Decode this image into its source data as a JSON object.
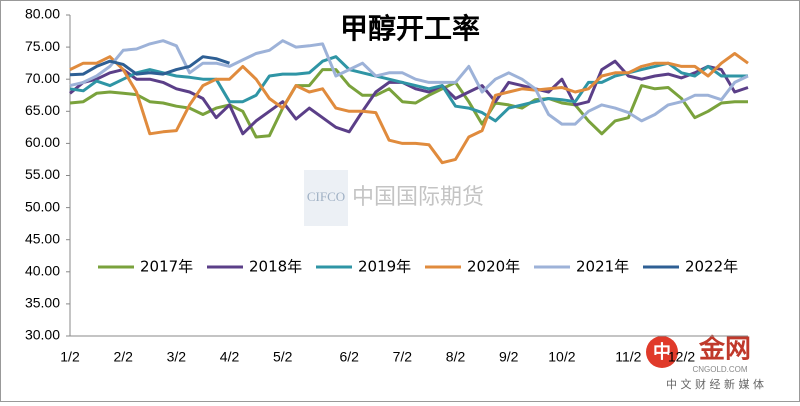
{
  "chart_data": {
    "type": "line",
    "title": "甲醇开工率",
    "categories": [
      "1/2",
      null,
      null,
      null,
      "2/2",
      null,
      null,
      null,
      "3/2",
      null,
      null,
      null,
      "4/2",
      null,
      null,
      null,
      "5/2",
      null,
      null,
      null,
      null,
      "6/2",
      null,
      null,
      null,
      "7/2",
      null,
      null,
      null,
      "8/2",
      null,
      null,
      null,
      "9/2",
      null,
      null,
      null,
      "10/2",
      null,
      null,
      null,
      null,
      "11/2",
      null,
      null,
      null,
      "12/2",
      null,
      null,
      null,
      null,
      null
    ],
    "series": [
      {
        "name": "2017年",
        "color": "#7aa23c",
        "values": [
          66.3,
          66.5,
          67.8,
          68,
          67.8,
          67.6,
          66.5,
          66.3,
          65.8,
          65.5,
          64.5,
          65.5,
          66,
          65,
          61,
          61.2,
          65.5,
          69,
          69,
          71.5,
          71.5,
          69,
          67.5,
          67.5,
          68.5,
          66.5,
          66.3,
          67.5,
          68.5,
          69.5,
          66.5,
          63,
          66.3,
          66,
          65.5,
          66.8,
          67,
          66.3,
          66,
          63.5,
          61.5,
          63.5,
          64,
          69,
          68.5,
          68.7,
          67,
          64,
          65,
          66.3,
          66.5,
          66.5
        ]
      },
      {
        "name": "2018年",
        "color": "#5b3f88",
        "values": [
          67.8,
          69.5,
          70,
          71,
          71.5,
          70,
          70,
          69.5,
          68.5,
          68,
          67,
          64,
          66,
          61.5,
          63.5,
          65,
          66.5,
          63.8,
          65.5,
          64,
          62.5,
          61.8,
          65,
          68,
          69.5,
          69.5,
          68.5,
          68,
          69,
          67,
          68,
          69,
          66.5,
          69.5,
          69,
          68.5,
          68,
          70,
          66,
          66.5,
          71.5,
          72.8,
          70.5,
          70,
          70.5,
          70.8,
          70.2,
          71,
          72,
          71.5,
          68,
          68.7
        ]
      },
      {
        "name": "2019年",
        "color": "#2f95a5",
        "values": [
          68.5,
          68.2,
          69.7,
          69,
          70,
          71,
          71.5,
          71,
          70.5,
          70.3,
          70,
          70,
          66.5,
          66.5,
          67.5,
          70.5,
          70.8,
          70.8,
          71,
          72.8,
          73.5,
          71.5,
          71,
          70.5,
          70,
          69.5,
          69,
          68.5,
          69,
          65.8,
          65.5,
          64.8,
          63.5,
          65.5,
          66,
          66.5,
          67,
          66.8,
          66.5,
          69.5,
          69.5,
          70.5,
          71,
          71.5,
          72,
          72.5,
          71,
          70.5,
          72,
          70.5,
          70.5,
          70.5
        ]
      },
      {
        "name": "2020年",
        "color": "#e08b3d",
        "values": [
          71.5,
          72.5,
          72.5,
          73.5,
          71.5,
          68,
          61.5,
          61.8,
          62,
          66,
          69,
          70,
          70,
          72,
          70,
          67,
          65.5,
          69,
          68,
          68.5,
          65.5,
          65,
          65,
          64.8,
          60.5,
          60,
          60,
          59.8,
          57,
          57.5,
          61,
          62,
          67.5,
          68,
          68.5,
          68.3,
          68.5,
          68.7,
          68,
          68.5,
          70.5,
          71,
          71,
          72,
          72.5,
          72.5,
          72,
          72,
          70.5,
          72.5,
          74,
          72.5
        ]
      },
      {
        "name": "2021年",
        "color": "#9db2d8",
        "values": [
          69,
          69.5,
          70.5,
          72,
          74.5,
          74.7,
          75.5,
          76,
          75.2,
          71,
          72.5,
          72.5,
          72,
          73,
          74,
          74.5,
          76,
          75,
          75.2,
          75.5,
          70.5,
          71.5,
          72.5,
          70.5,
          71,
          71,
          70,
          69.5,
          69.5,
          69.5,
          72,
          68,
          70,
          71,
          70,
          68.5,
          64.5,
          63,
          63,
          65,
          66,
          65.5,
          64.8,
          63.5,
          64.5,
          66,
          66.5,
          67.5,
          67.5,
          66.8,
          69.5,
          70.5
        ]
      },
      {
        "name": "2022年",
        "color": "#2e5f94",
        "values": [
          70.7,
          70.8,
          72,
          72.8,
          72.3,
          70.8,
          71,
          70.8,
          71.5,
          72,
          73.5,
          73.2,
          72.5,
          null,
          null,
          null,
          null,
          null,
          null,
          null,
          null,
          null,
          null,
          null,
          null,
          null,
          null,
          null,
          null,
          null,
          null,
          null,
          null,
          null,
          null,
          null,
          null,
          null,
          null,
          null,
          null,
          null,
          null,
          null,
          null,
          null,
          null,
          null,
          null,
          null,
          null,
          null
        ]
      }
    ],
    "ylim": [
      30,
      80
    ],
    "yticks": [
      {
        "value": 30,
        "label": "30.00"
      },
      {
        "value": 35,
        "label": "35.00"
      },
      {
        "value": 40,
        "label": "40.00"
      },
      {
        "value": 45,
        "label": "45.00"
      },
      {
        "value": 50,
        "label": "50.00"
      },
      {
        "value": 55,
        "label": "55.00"
      },
      {
        "value": 60,
        "label": "60.00"
      },
      {
        "value": 65,
        "label": "65.00"
      },
      {
        "value": 70,
        "label": "70.00"
      },
      {
        "value": 75,
        "label": "75.00"
      },
      {
        "value": 80,
        "label": "80.00"
      }
    ],
    "grid": false,
    "legend": "center",
    "annotations": [
      "CIFCO",
      "中国国际期货",
      "中",
      "金网",
      "CNGOLD.COM",
      "中 文 财 经 新 媒 体"
    ]
  }
}
